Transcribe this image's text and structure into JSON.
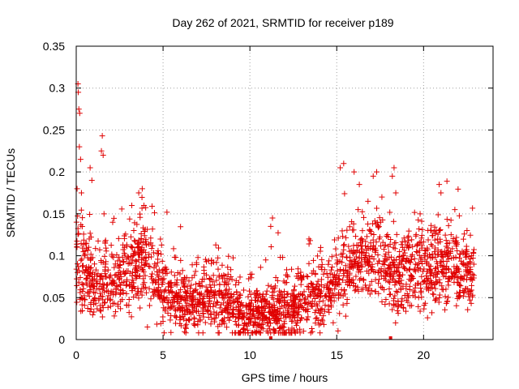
{
  "chart_data": {
    "type": "scatter",
    "title": "Day 262 of 2021, SRMTID for receiver p189",
    "xlabel": "GPS time / hours",
    "ylabel": "SRMTID / TECUs",
    "xlim": [
      0,
      24
    ],
    "ylim": [
      0,
      0.35
    ],
    "xticks": [
      0,
      5,
      10,
      15,
      20
    ],
    "xtick_labels": [
      "0",
      "5",
      "10",
      "15",
      "20"
    ],
    "yticks": [
      0,
      0.05,
      0.1,
      0.15,
      0.2,
      0.25,
      0.3,
      0.35
    ],
    "ytick_labels": [
      "0",
      "0.05",
      "0.1",
      "0.15",
      "0.2",
      "0.25",
      "0.3",
      "0.35"
    ],
    "grid": true,
    "marker": "+",
    "color": "#e00000",
    "gap_markers_x": [
      11.2,
      18.1
    ],
    "trend": [
      [
        0.0,
        0.1
      ],
      [
        0.3,
        0.085
      ],
      [
        1.0,
        0.07
      ],
      [
        2.0,
        0.075
      ],
      [
        3.0,
        0.075
      ],
      [
        3.8,
        0.11
      ],
      [
        4.5,
        0.07
      ],
      [
        5.5,
        0.055
      ],
      [
        6.5,
        0.045
      ],
      [
        7.5,
        0.05
      ],
      [
        8.5,
        0.05
      ],
      [
        9.5,
        0.035
      ],
      [
        10.5,
        0.03
      ],
      [
        11.5,
        0.035
      ],
      [
        12.5,
        0.035
      ],
      [
        13.5,
        0.05
      ],
      [
        14.5,
        0.06
      ],
      [
        15.5,
        0.085
      ],
      [
        16.5,
        0.1
      ],
      [
        17.5,
        0.1
      ],
      [
        18.5,
        0.07
      ],
      [
        19.5,
        0.09
      ],
      [
        20.5,
        0.085
      ],
      [
        21.5,
        0.09
      ],
      [
        22.5,
        0.08
      ],
      [
        22.9,
        0.075
      ]
    ],
    "spikes": [
      {
        "x": 0.1,
        "y": 0.305
      },
      {
        "x": 0.12,
        "y": 0.295
      },
      {
        "x": 0.15,
        "y": 0.275
      },
      {
        "x": 0.2,
        "y": 0.27
      },
      {
        "x": 0.18,
        "y": 0.23
      },
      {
        "x": 0.25,
        "y": 0.215
      },
      {
        "x": 0.05,
        "y": 0.18
      },
      {
        "x": 0.3,
        "y": 0.175
      },
      {
        "x": 0.8,
        "y": 0.205
      },
      {
        "x": 0.9,
        "y": 0.19
      },
      {
        "x": 1.5,
        "y": 0.243
      },
      {
        "x": 1.45,
        "y": 0.225
      },
      {
        "x": 1.55,
        "y": 0.22
      },
      {
        "x": 1.6,
        "y": 0.15
      },
      {
        "x": 3.6,
        "y": 0.175
      },
      {
        "x": 3.8,
        "y": 0.18
      },
      {
        "x": 3.9,
        "y": 0.16
      },
      {
        "x": 3.2,
        "y": 0.16
      },
      {
        "x": 15.4,
        "y": 0.21
      },
      {
        "x": 15.2,
        "y": 0.205
      },
      {
        "x": 16.0,
        "y": 0.2
      },
      {
        "x": 16.3,
        "y": 0.185
      },
      {
        "x": 17.3,
        "y": 0.2
      },
      {
        "x": 17.1,
        "y": 0.195
      },
      {
        "x": 18.3,
        "y": 0.205
      },
      {
        "x": 18.2,
        "y": 0.195
      },
      {
        "x": 18.4,
        "y": 0.175
      },
      {
        "x": 20.9,
        "y": 0.185
      },
      {
        "x": 21.0,
        "y": 0.175
      },
      {
        "x": 19.8,
        "y": 0.15
      },
      {
        "x": 21.8,
        "y": 0.155
      },
      {
        "x": 2.1,
        "y": 0.14
      },
      {
        "x": 11.3,
        "y": 0.145
      },
      {
        "x": 11.2,
        "y": 0.135
      },
      {
        "x": 13.4,
        "y": 0.12
      },
      {
        "x": 16.8,
        "y": 0.165
      },
      {
        "x": 17.6,
        "y": 0.17
      },
      {
        "x": 22.5,
        "y": 0.13
      },
      {
        "x": 4.1,
        "y": 0.015
      },
      {
        "x": 9.6,
        "y": 0.012
      },
      {
        "x": 10.4,
        "y": 0.01
      },
      {
        "x": 12.0,
        "y": 0.008
      }
    ],
    "n_points": 2300,
    "noise_spread": 0.022
  }
}
